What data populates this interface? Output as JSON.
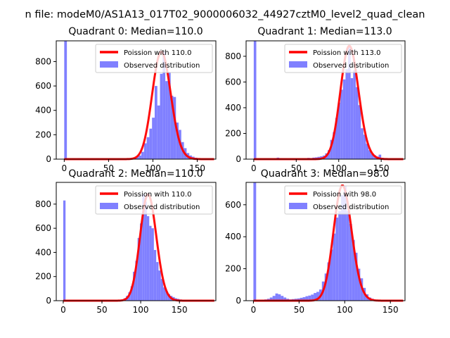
{
  "figure": {
    "suptitle": "n file: modeM0/AS1A13_017T02_9000006032_44927cztM0_level2_quad_clean"
  },
  "colors": {
    "observed": "#8080ff",
    "poisson": "#ff0000",
    "axis": "#000000"
  },
  "chart_data": [
    {
      "type": "bar",
      "title": "Quadrant 0: Median=110.0",
      "xlim": [
        -9,
        171
      ],
      "ylim": [
        0,
        970
      ],
      "xticks": [
        0,
        50,
        100,
        150
      ],
      "yticks": [
        0,
        200,
        400,
        600,
        800
      ],
      "legend": {
        "placement": "top-right",
        "entries": [
          "Poission with 110.0",
          "Observed distribution"
        ]
      },
      "poisson_mean": 110.0,
      "observed_bins": [
        {
          "x": 0,
          "y": 970
        },
        {
          "x": 3,
          "y": 5
        },
        {
          "x": 6,
          "y": 4
        },
        {
          "x": 9,
          "y": 6
        },
        {
          "x": 12,
          "y": 4
        },
        {
          "x": 15,
          "y": 8
        },
        {
          "x": 18,
          "y": 5
        },
        {
          "x": 21,
          "y": 4
        },
        {
          "x": 24,
          "y": 6
        },
        {
          "x": 27,
          "y": 3
        },
        {
          "x": 30,
          "y": 5
        },
        {
          "x": 33,
          "y": 4
        },
        {
          "x": 36,
          "y": 6
        },
        {
          "x": 39,
          "y": 3
        },
        {
          "x": 42,
          "y": 5
        },
        {
          "x": 45,
          "y": 4
        },
        {
          "x": 48,
          "y": 3
        },
        {
          "x": 51,
          "y": 5
        },
        {
          "x": 54,
          "y": 4
        },
        {
          "x": 57,
          "y": 3
        },
        {
          "x": 60,
          "y": 5
        },
        {
          "x": 63,
          "y": 4
        },
        {
          "x": 66,
          "y": 3
        },
        {
          "x": 69,
          "y": 4
        },
        {
          "x": 72,
          "y": 5
        },
        {
          "x": 75,
          "y": 8
        },
        {
          "x": 78,
          "y": 14
        },
        {
          "x": 81,
          "y": 22
        },
        {
          "x": 84,
          "y": 30
        },
        {
          "x": 87,
          "y": 60
        },
        {
          "x": 90,
          "y": 130
        },
        {
          "x": 93,
          "y": 180
        },
        {
          "x": 96,
          "y": 250
        },
        {
          "x": 99,
          "y": 340
        },
        {
          "x": 102,
          "y": 600
        },
        {
          "x": 105,
          "y": 440
        },
        {
          "x": 108,
          "y": 700
        },
        {
          "x": 111,
          "y": 880
        },
        {
          "x": 114,
          "y": 640
        },
        {
          "x": 117,
          "y": 710
        },
        {
          "x": 120,
          "y": 520
        },
        {
          "x": 123,
          "y": 510
        },
        {
          "x": 126,
          "y": 300
        },
        {
          "x": 129,
          "y": 240
        },
        {
          "x": 132,
          "y": 140
        },
        {
          "x": 135,
          "y": 90
        },
        {
          "x": 138,
          "y": 50
        },
        {
          "x": 141,
          "y": 30
        },
        {
          "x": 144,
          "y": 20
        },
        {
          "x": 147,
          "y": 12
        }
      ]
    },
    {
      "type": "bar",
      "title": "Quadrant 1: Median=113.0",
      "xlim": [
        -9,
        178
      ],
      "ylim": [
        0,
        920
      ],
      "xticks": [
        0,
        50,
        100,
        150
      ],
      "yticks": [
        0,
        200,
        400,
        600,
        800
      ],
      "legend": {
        "placement": "top-right",
        "entries": [
          "Poission with 113.0",
          "Observed distribution"
        ]
      },
      "poisson_mean": 113.0,
      "observed_bins": [
        {
          "x": 0,
          "y": 920
        },
        {
          "x": 3,
          "y": 4
        },
        {
          "x": 6,
          "y": 5
        },
        {
          "x": 9,
          "y": 3
        },
        {
          "x": 12,
          "y": 4
        },
        {
          "x": 15,
          "y": 6
        },
        {
          "x": 18,
          "y": 4
        },
        {
          "x": 21,
          "y": 3
        },
        {
          "x": 24,
          "y": 5
        },
        {
          "x": 27,
          "y": 12
        },
        {
          "x": 30,
          "y": 8
        },
        {
          "x": 33,
          "y": 5
        },
        {
          "x": 36,
          "y": 4
        },
        {
          "x": 39,
          "y": 3
        },
        {
          "x": 42,
          "y": 4
        },
        {
          "x": 45,
          "y": 5
        },
        {
          "x": 48,
          "y": 3
        },
        {
          "x": 51,
          "y": 4
        },
        {
          "x": 54,
          "y": 3
        },
        {
          "x": 57,
          "y": 4
        },
        {
          "x": 60,
          "y": 5
        },
        {
          "x": 63,
          "y": 10
        },
        {
          "x": 66,
          "y": 8
        },
        {
          "x": 69,
          "y": 12
        },
        {
          "x": 72,
          "y": 14
        },
        {
          "x": 75,
          "y": 18
        },
        {
          "x": 78,
          "y": 22
        },
        {
          "x": 81,
          "y": 28
        },
        {
          "x": 84,
          "y": 45
        },
        {
          "x": 87,
          "y": 70
        },
        {
          "x": 90,
          "y": 150
        },
        {
          "x": 93,
          "y": 210
        },
        {
          "x": 96,
          "y": 320
        },
        {
          "x": 99,
          "y": 440
        },
        {
          "x": 102,
          "y": 540
        },
        {
          "x": 105,
          "y": 620
        },
        {
          "x": 108,
          "y": 700
        },
        {
          "x": 111,
          "y": 880
        },
        {
          "x": 114,
          "y": 630
        },
        {
          "x": 117,
          "y": 690
        },
        {
          "x": 120,
          "y": 560
        },
        {
          "x": 123,
          "y": 420
        },
        {
          "x": 126,
          "y": 240
        },
        {
          "x": 129,
          "y": 190
        },
        {
          "x": 132,
          "y": 120
        },
        {
          "x": 135,
          "y": 70
        },
        {
          "x": 138,
          "y": 40
        },
        {
          "x": 141,
          "y": 30
        },
        {
          "x": 144,
          "y": 20
        },
        {
          "x": 147,
          "y": 35
        },
        {
          "x": 150,
          "y": 10
        },
        {
          "x": 153,
          "y": 5
        }
      ]
    },
    {
      "type": "bar",
      "title": "Quadrant 2: Median=110.0",
      "xlim": [
        -9,
        197
      ],
      "ylim": [
        0,
        980
      ],
      "xticks": [
        0,
        50,
        100,
        150
      ],
      "yticks": [
        0,
        200,
        400,
        600,
        800
      ],
      "legend": {
        "placement": "top-right",
        "entries": [
          "Poission with 110.0",
          "Observed distribution"
        ]
      },
      "poisson_mean": 110.0,
      "observed_bins": [
        {
          "x": 0,
          "y": 830
        },
        {
          "x": 6,
          "y": 2
        },
        {
          "x": 12,
          "y": 2
        },
        {
          "x": 18,
          "y": 2
        },
        {
          "x": 24,
          "y": 2
        },
        {
          "x": 30,
          "y": 2
        },
        {
          "x": 36,
          "y": 2
        },
        {
          "x": 42,
          "y": 2
        },
        {
          "x": 48,
          "y": 2
        },
        {
          "x": 54,
          "y": 2
        },
        {
          "x": 60,
          "y": 2
        },
        {
          "x": 66,
          "y": 3
        },
        {
          "x": 72,
          "y": 4
        },
        {
          "x": 75,
          "y": 8
        },
        {
          "x": 78,
          "y": 20
        },
        {
          "x": 81,
          "y": 40
        },
        {
          "x": 84,
          "y": 70
        },
        {
          "x": 87,
          "y": 120
        },
        {
          "x": 90,
          "y": 240
        },
        {
          "x": 93,
          "y": 330
        },
        {
          "x": 96,
          "y": 520
        },
        {
          "x": 99,
          "y": 640
        },
        {
          "x": 102,
          "y": 880
        },
        {
          "x": 105,
          "y": 820
        },
        {
          "x": 108,
          "y": 700
        },
        {
          "x": 111,
          "y": 620
        },
        {
          "x": 114,
          "y": 600
        },
        {
          "x": 117,
          "y": 420
        },
        {
          "x": 120,
          "y": 320
        },
        {
          "x": 123,
          "y": 250
        },
        {
          "x": 126,
          "y": 180
        },
        {
          "x": 129,
          "y": 110
        },
        {
          "x": 132,
          "y": 80
        },
        {
          "x": 135,
          "y": 55
        },
        {
          "x": 138,
          "y": 40
        },
        {
          "x": 141,
          "y": 30
        },
        {
          "x": 144,
          "y": 20
        },
        {
          "x": 147,
          "y": 15
        },
        {
          "x": 150,
          "y": 10
        },
        {
          "x": 153,
          "y": 6
        },
        {
          "x": 156,
          "y": 4
        }
      ]
    },
    {
      "type": "bar",
      "title": "Quadrant 3: Median=98.0",
      "xlim": [
        -8,
        166
      ],
      "ylim": [
        0,
        740
      ],
      "xticks": [
        0,
        50,
        100,
        150
      ],
      "yticks": [
        0,
        200,
        400,
        600
      ],
      "legend": {
        "placement": "top-right",
        "entries": [
          "Poission with 98.0",
          "Observed distribution"
        ]
      },
      "poisson_mean": 98.0,
      "observed_bins": [
        {
          "x": 0,
          "y": 740
        },
        {
          "x": 3,
          "y": 3
        },
        {
          "x": 6,
          "y": 4
        },
        {
          "x": 9,
          "y": 6
        },
        {
          "x": 12,
          "y": 8
        },
        {
          "x": 15,
          "y": 12
        },
        {
          "x": 18,
          "y": 20
        },
        {
          "x": 21,
          "y": 30
        },
        {
          "x": 24,
          "y": 45
        },
        {
          "x": 27,
          "y": 40
        },
        {
          "x": 30,
          "y": 30
        },
        {
          "x": 33,
          "y": 20
        },
        {
          "x": 36,
          "y": 12
        },
        {
          "x": 39,
          "y": 8
        },
        {
          "x": 42,
          "y": 10
        },
        {
          "x": 45,
          "y": 12
        },
        {
          "x": 48,
          "y": 14
        },
        {
          "x": 51,
          "y": 18
        },
        {
          "x": 54,
          "y": 22
        },
        {
          "x": 57,
          "y": 28
        },
        {
          "x": 60,
          "y": 32
        },
        {
          "x": 63,
          "y": 38
        },
        {
          "x": 66,
          "y": 48
        },
        {
          "x": 69,
          "y": 55
        },
        {
          "x": 72,
          "y": 70
        },
        {
          "x": 75,
          "y": 120
        },
        {
          "x": 78,
          "y": 170
        },
        {
          "x": 81,
          "y": 240
        },
        {
          "x": 84,
          "y": 320
        },
        {
          "x": 87,
          "y": 420
        },
        {
          "x": 90,
          "y": 520
        },
        {
          "x": 93,
          "y": 560
        },
        {
          "x": 96,
          "y": 660
        },
        {
          "x": 99,
          "y": 720
        },
        {
          "x": 102,
          "y": 560
        },
        {
          "x": 105,
          "y": 480
        },
        {
          "x": 108,
          "y": 380
        },
        {
          "x": 111,
          "y": 300
        },
        {
          "x": 114,
          "y": 200
        },
        {
          "x": 117,
          "y": 140
        },
        {
          "x": 120,
          "y": 80
        },
        {
          "x": 123,
          "y": 40
        },
        {
          "x": 126,
          "y": 20
        },
        {
          "x": 129,
          "y": 12
        },
        {
          "x": 132,
          "y": 6
        },
        {
          "x": 135,
          "y": 4
        }
      ]
    }
  ]
}
